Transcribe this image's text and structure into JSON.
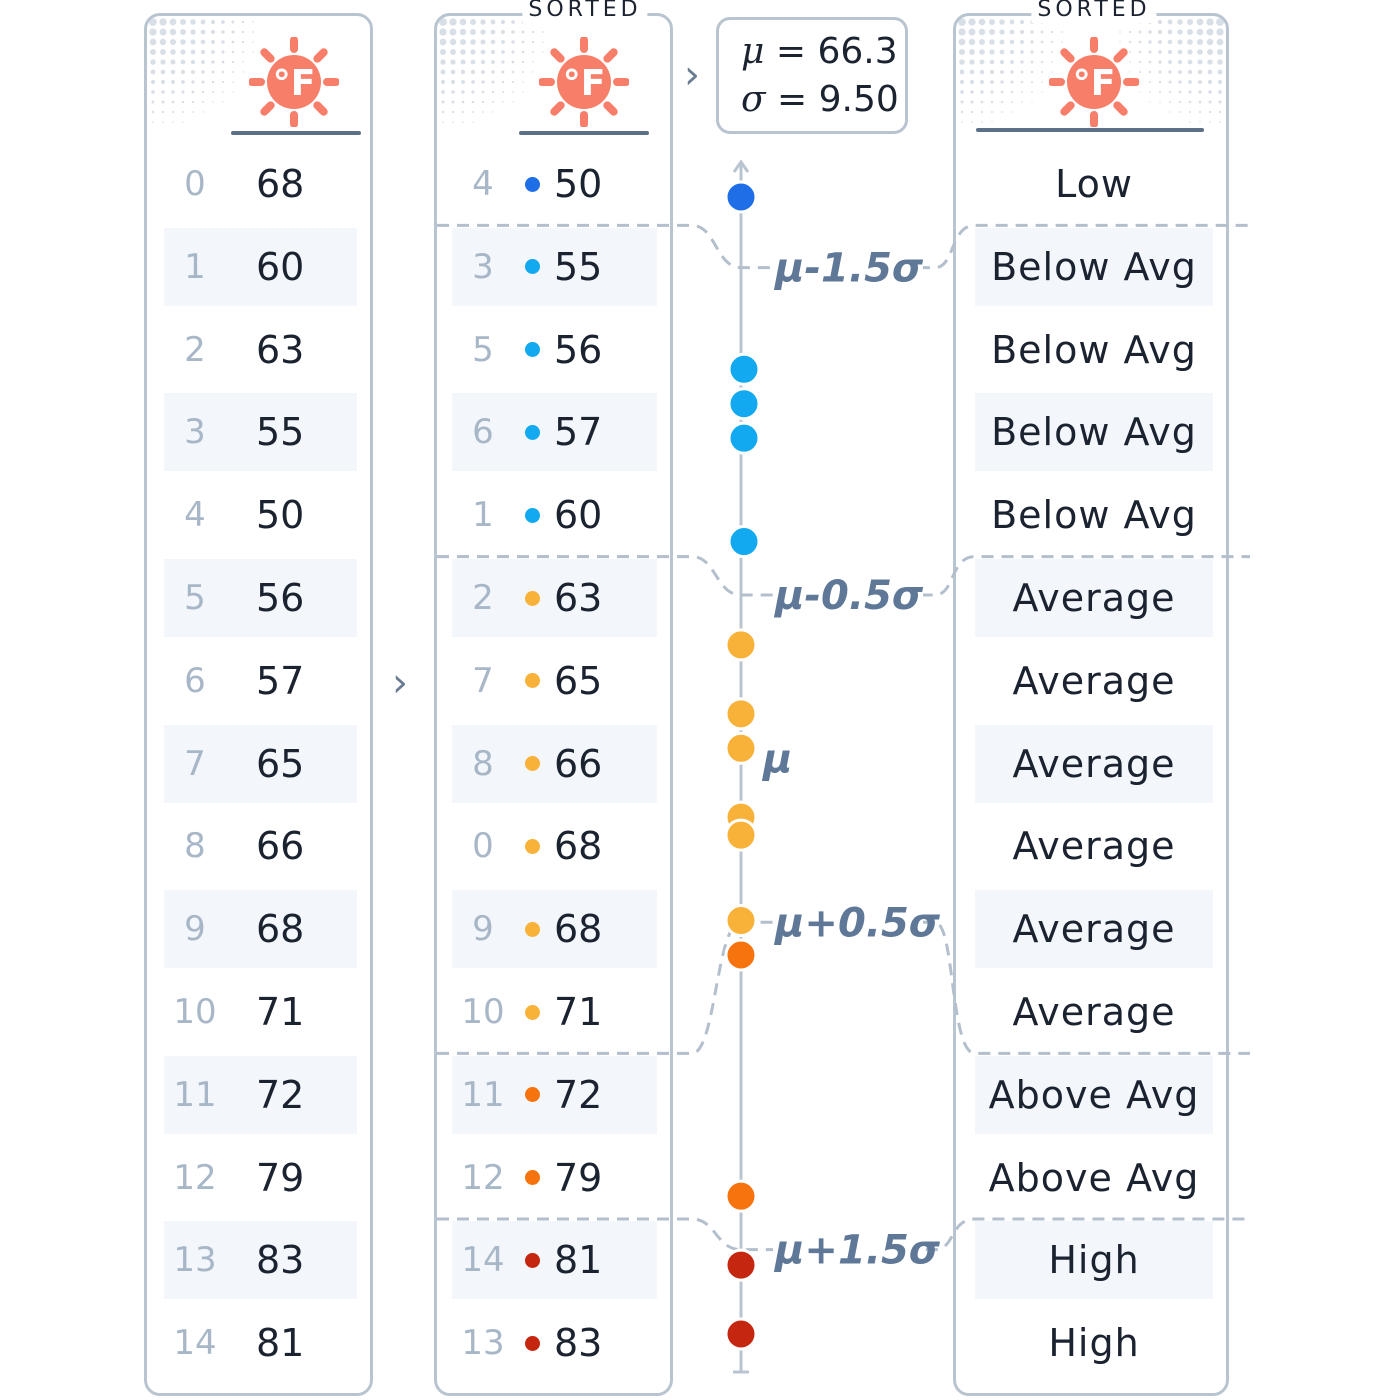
{
  "stats": {
    "mu_symbol": "μ",
    "mu_value": "66.3",
    "sigma_symbol": "σ",
    "sigma_value": "9.50"
  },
  "sorted_label": "SORTED",
  "icon": "sun-fahrenheit-icon",
  "icon_text": "°F",
  "colors": {
    "low": "#1e6ee8",
    "below": "#12a9f0",
    "avg": "#f8b23a",
    "above": "#f7730e",
    "high": "#c5260f",
    "sun": "#f77f6a",
    "threshold": "#5f7897",
    "dash": "#b3bfcc"
  },
  "original": [
    {
      "index": "0",
      "value": "68"
    },
    {
      "index": "1",
      "value": "60"
    },
    {
      "index": "2",
      "value": "63"
    },
    {
      "index": "3",
      "value": "55"
    },
    {
      "index": "4",
      "value": "50"
    },
    {
      "index": "5",
      "value": "56"
    },
    {
      "index": "6",
      "value": "57"
    },
    {
      "index": "7",
      "value": "65"
    },
    {
      "index": "8",
      "value": "66"
    },
    {
      "index": "9",
      "value": "68"
    },
    {
      "index": "10",
      "value": "71"
    },
    {
      "index": "11",
      "value": "72"
    },
    {
      "index": "12",
      "value": "79"
    },
    {
      "index": "13",
      "value": "83"
    },
    {
      "index": "14",
      "value": "81"
    }
  ],
  "sorted": [
    {
      "index": "4",
      "value": "50",
      "cat": "low"
    },
    {
      "index": "3",
      "value": "55",
      "cat": "below"
    },
    {
      "index": "5",
      "value": "56",
      "cat": "below"
    },
    {
      "index": "6",
      "value": "57",
      "cat": "below"
    },
    {
      "index": "1",
      "value": "60",
      "cat": "below"
    },
    {
      "index": "2",
      "value": "63",
      "cat": "avg"
    },
    {
      "index": "7",
      "value": "65",
      "cat": "avg"
    },
    {
      "index": "8",
      "value": "66",
      "cat": "avg"
    },
    {
      "index": "0",
      "value": "68",
      "cat": "avg"
    },
    {
      "index": "9",
      "value": "68",
      "cat": "avg"
    },
    {
      "index": "10",
      "value": "71",
      "cat": "avg"
    },
    {
      "index": "11",
      "value": "72",
      "cat": "above"
    },
    {
      "index": "12",
      "value": "79",
      "cat": "above"
    },
    {
      "index": "14",
      "value": "81",
      "cat": "high"
    },
    {
      "index": "13",
      "value": "83",
      "cat": "high"
    }
  ],
  "categories": [
    "Low",
    "Below Avg",
    "Below Avg",
    "Below Avg",
    "Below Avg",
    "Average",
    "Average",
    "Average",
    "Average",
    "Average",
    "Average",
    "Above Avg",
    "Above Avg",
    "High",
    "High"
  ],
  "axis": {
    "points": [
      50,
      55,
      56,
      57,
      60,
      63,
      65,
      66,
      68,
      68,
      71,
      72,
      79,
      81,
      83
    ],
    "point_cats": [
      "low",
      "below",
      "below",
      "below",
      "below",
      "avg",
      "avg",
      "avg",
      "avg",
      "avg",
      "avg",
      "above",
      "above",
      "high",
      "high"
    ],
    "mean": 66.3,
    "sd": 9.5,
    "thresholds": [
      {
        "label": "μ-1.5σ",
        "value": 52.05
      },
      {
        "label": "μ-0.5σ",
        "value": 61.55
      },
      {
        "label": "μ",
        "value": 66.3
      },
      {
        "label": "μ+0.5σ",
        "value": 71.05
      },
      {
        "label": "μ+1.5σ",
        "value": 80.55
      }
    ]
  }
}
